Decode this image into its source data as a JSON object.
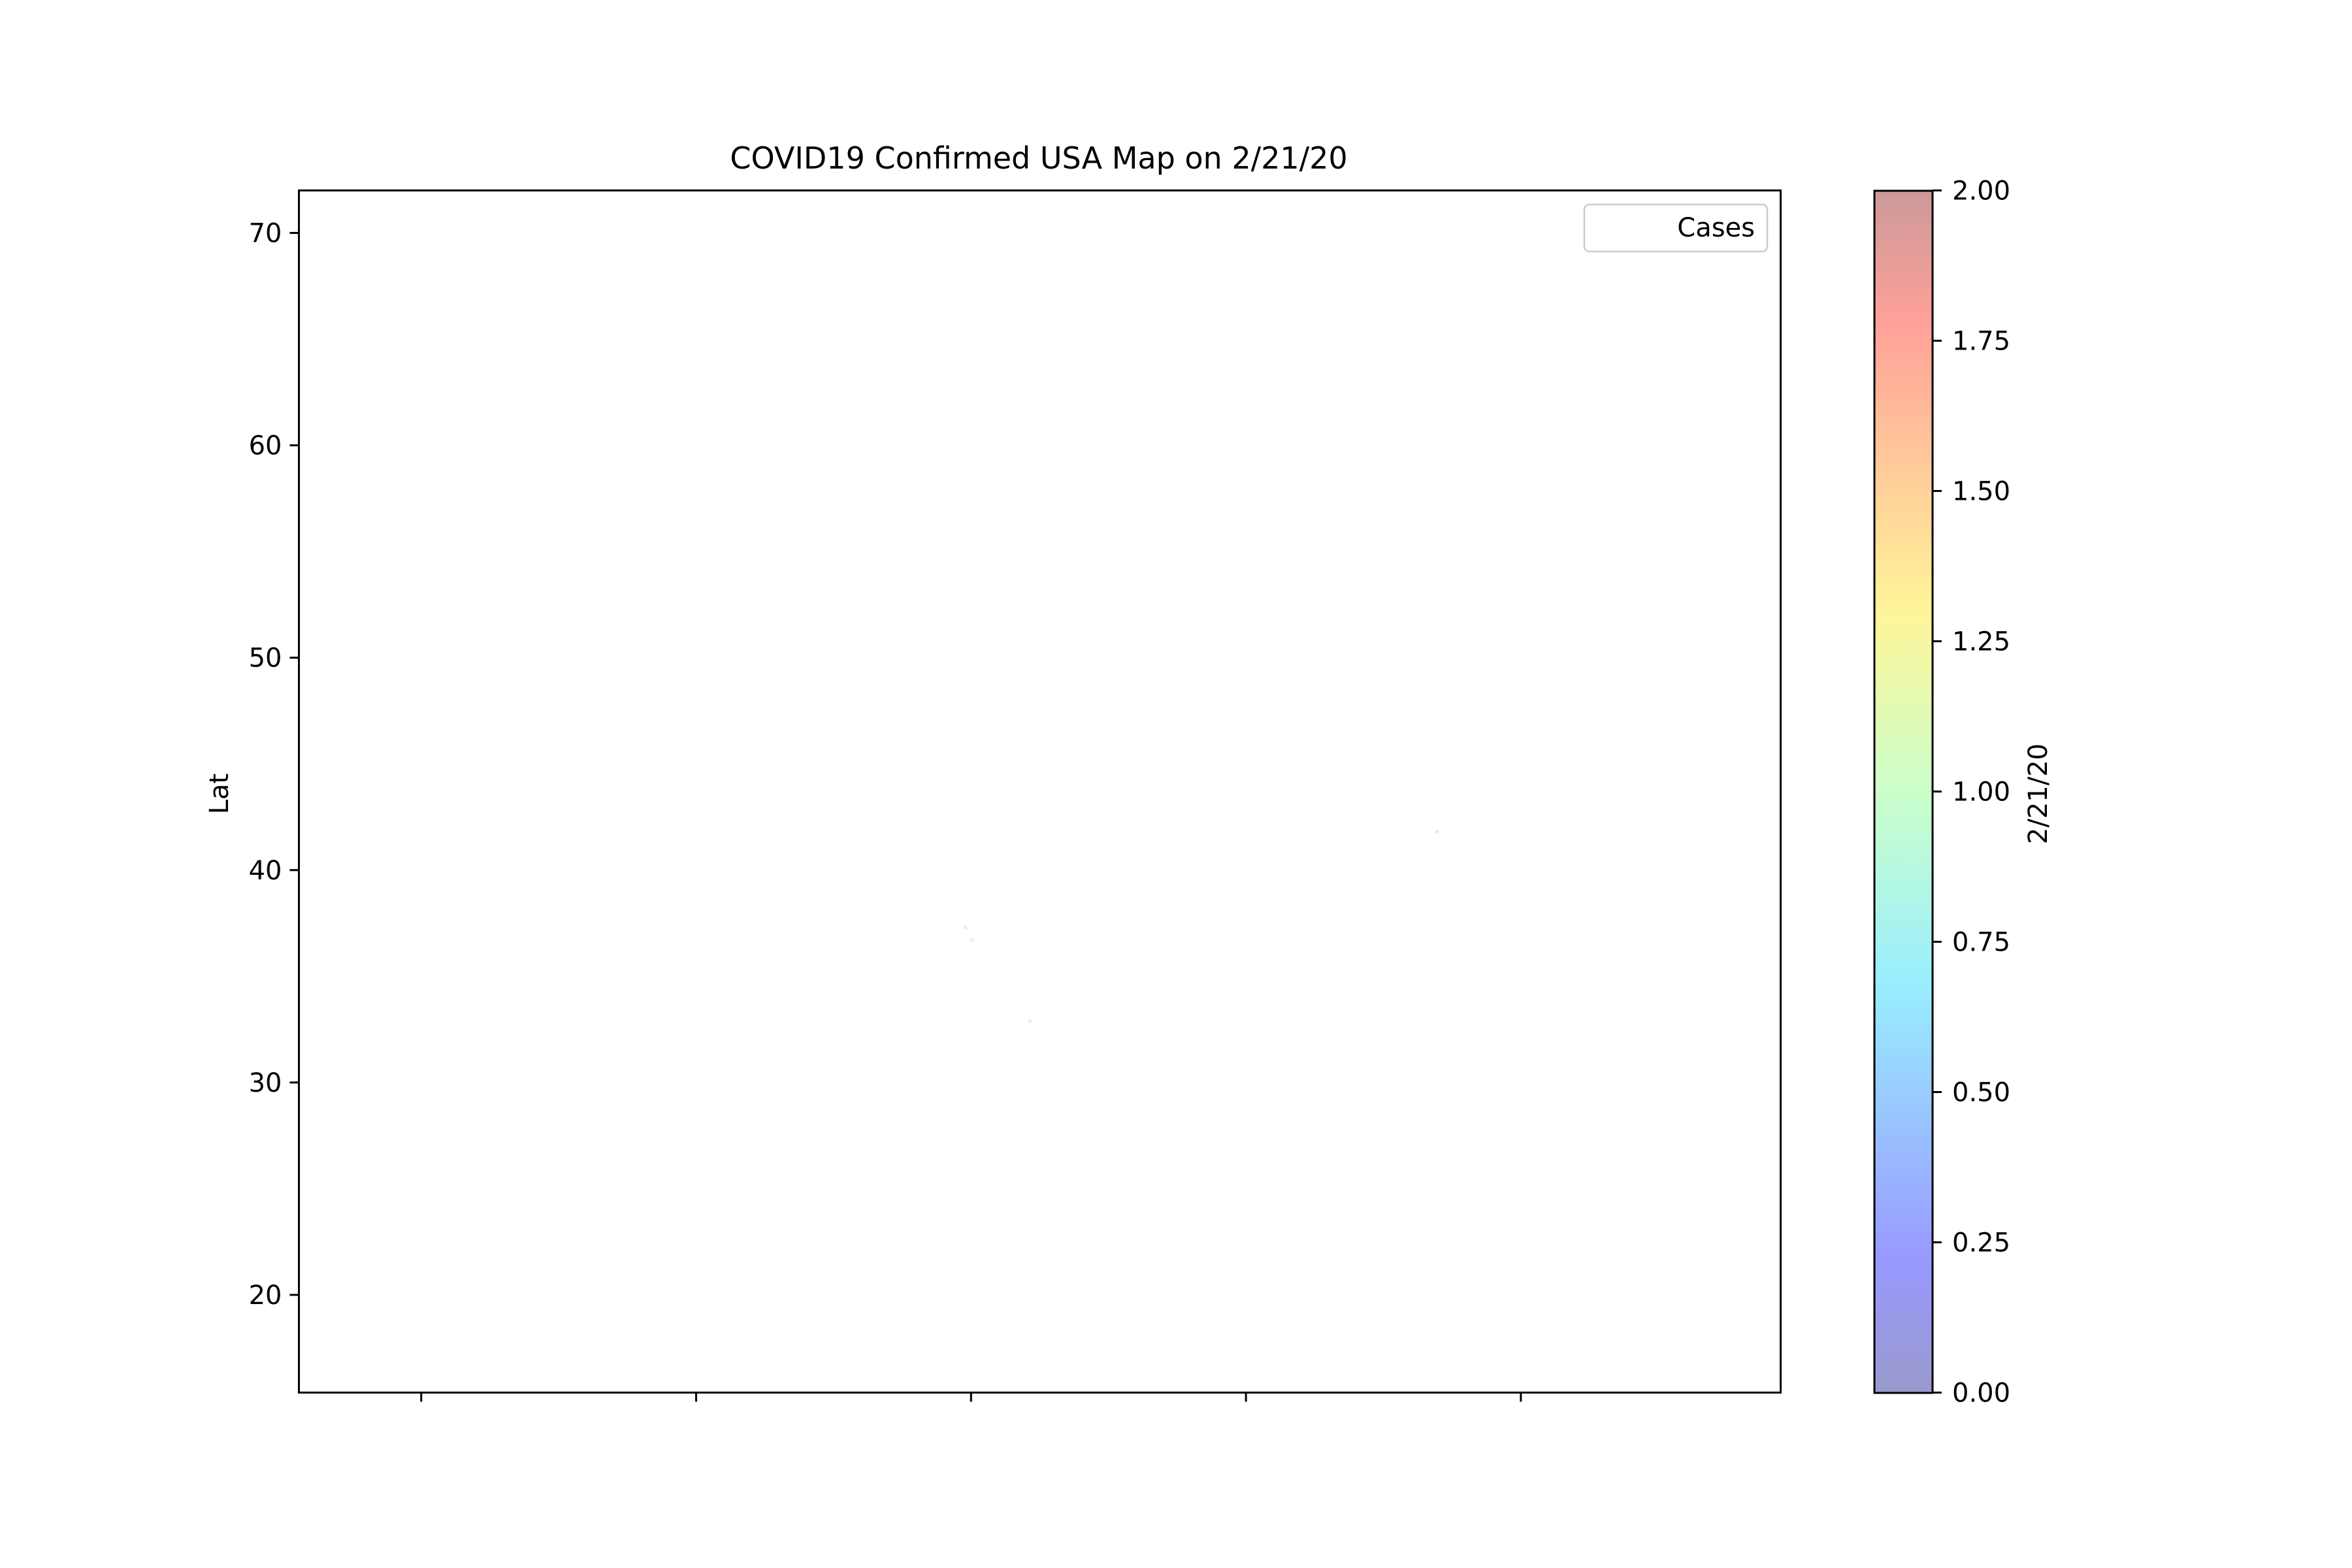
{
  "chart_data": {
    "type": "scatter",
    "title": "COVID19 Confirmed USA Map on 2/21/20",
    "xlabel": "",
    "ylabel": "Lat",
    "ylim": [
      15.4,
      72
    ],
    "xlim": [
      -170.4,
      -62.6
    ],
    "y_ticks": [
      20,
      30,
      40,
      50,
      60,
      70
    ],
    "y_tick_labels": [
      "20",
      "30",
      "40",
      "50",
      "60",
      "70"
    ],
    "x_ticks": [
      -161.5,
      -141.5,
      -121.5,
      -101.5,
      -81.5
    ],
    "x_tick_labels": [
      "",
      "",
      "",
      "",
      ""
    ],
    "grid": false,
    "legend": {
      "entries": [
        "Cases"
      ],
      "placement": "top-right"
    },
    "series": [
      {
        "name": "Cases",
        "points": [
          {
            "x": -121.9,
            "y": 37.3,
            "value": 1
          },
          {
            "x": -121.4,
            "y": 36.7,
            "value": 0
          },
          {
            "x": -117.2,
            "y": 32.9,
            "value": 0
          },
          {
            "x": -87.6,
            "y": 41.8,
            "value": 0
          }
        ]
      }
    ],
    "colorbar": {
      "label": "2/21/20",
      "range": [
        0,
        2
      ],
      "ticks": [
        0,
        0.25,
        0.5,
        0.75,
        1,
        1.25,
        1.5,
        1.75,
        2
      ],
      "tick_labels": [
        "0.00",
        "0.25",
        "0.50",
        "0.75",
        "1.00",
        "1.25",
        "1.50",
        "1.75",
        "2.00"
      ],
      "colormap": "jet",
      "alpha": 0.4
    }
  }
}
